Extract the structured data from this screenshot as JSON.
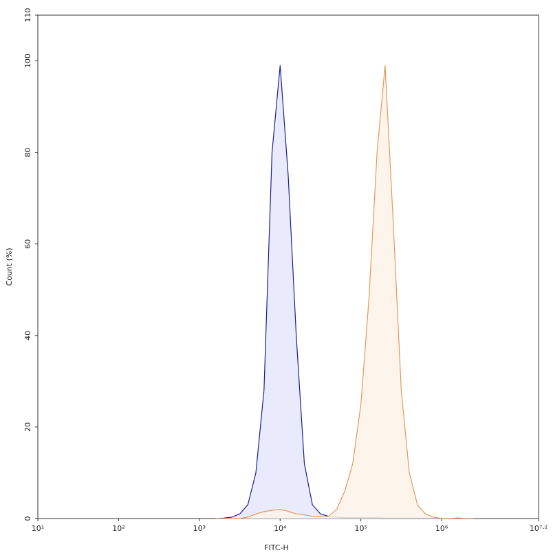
{
  "chart_data": {
    "type": "area",
    "xlabel": "FITC-H",
    "ylabel": "Count (%)",
    "log_x": true,
    "xlim": [
      10,
      15848932
    ],
    "xticks": [
      {
        "value": 10,
        "label": "10¹"
      },
      {
        "value": 100,
        "label": "10²"
      },
      {
        "value": 1000,
        "label": "10³"
      },
      {
        "value": 10000,
        "label": "10⁴"
      },
      {
        "value": 100000,
        "label": "10⁵"
      },
      {
        "value": 1000000,
        "label": "10⁶"
      },
      {
        "value": 15848932,
        "label": "10⁷·²"
      }
    ],
    "ylim": [
      0,
      110
    ],
    "yticks": [
      0,
      20,
      40,
      60,
      80,
      100,
      110
    ],
    "x": [
      1585,
      1995,
      2512,
      3162,
      3981,
      5012,
      6310,
      7943,
      10000,
      12589,
      15849,
      19953,
      25119,
      31623,
      39811,
      50119,
      63096,
      79433,
      100000,
      125893,
      158489,
      199526,
      251189,
      316228,
      398107,
      501187,
      630957,
      794328,
      1000000,
      1258925,
      1584893,
      1995262,
      2511886
    ],
    "series": [
      {
        "color": "#1b1f8a",
        "fill": "#e5e7fb",
        "values": [
          0,
          0.1,
          0.3,
          1,
          3,
          10,
          28,
          80,
          99,
          75,
          40,
          12,
          3,
          1,
          0.5,
          0.3,
          0.2,
          0.2,
          0.2,
          0.2,
          0.2,
          0.1,
          0.1,
          0.1,
          0.1,
          0.1,
          0.1,
          0.1,
          0,
          0,
          0.1,
          0,
          0
        ]
      },
      {
        "color": "#e39a55",
        "fill": "#fdf3e9",
        "values": [
          0,
          0,
          0,
          0,
          0.3,
          1,
          1.5,
          1.8,
          2,
          1.6,
          1,
          0.8,
          0.5,
          0.4,
          0.5,
          2,
          6,
          12,
          25,
          48,
          80,
          99,
          65,
          28,
          10,
          3,
          1,
          0.3,
          0,
          0,
          0,
          0,
          0
        ]
      }
    ]
  }
}
